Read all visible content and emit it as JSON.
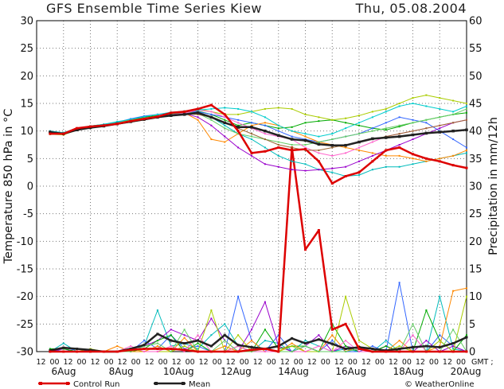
{
  "title": "GFS Ensemble Time Series Kiew",
  "date": "Thu, 05.08.2004",
  "credit": "© WeatherOnline",
  "chart_data": {
    "type": "line",
    "ylabel_left": "Temperature 850 hPa in °C",
    "ylabel_right": "Precipitation in mm/12h",
    "ylim_left": [
      -30,
      30
    ],
    "ylim_right": [
      0,
      60
    ],
    "left_ticks": [
      30,
      25,
      20,
      15,
      10,
      5,
      0,
      -5,
      -10,
      -15,
      -20,
      -25,
      -30
    ],
    "right_ticks": [
      60,
      55,
      50,
      45,
      40,
      35,
      30,
      25,
      20,
      15,
      10,
      5,
      0
    ],
    "hour_ticks": [
      "12",
      "00",
      "12",
      "00",
      "12",
      "00",
      "12",
      "00",
      "12",
      "00",
      "12",
      "00",
      "12",
      "00",
      "12",
      "00",
      "12",
      "00",
      "12",
      "00",
      "12",
      "00",
      "12",
      "00",
      "12",
      "00",
      "12",
      "00",
      "12",
      "00",
      "12",
      "00"
    ],
    "gmt_label": "GMT ;",
    "date_labels": [
      "6Aug",
      "8Aug",
      "10Aug",
      "12Aug",
      "14Aug",
      "16Aug",
      "18Aug",
      "20Aug"
    ],
    "grid": true,
    "legend": [
      {
        "name": "Control Run",
        "color": "#dd0000"
      },
      {
        "name": "Mean",
        "color": "#222222"
      }
    ],
    "temperature": {
      "control": [
        9.5,
        9.5,
        10.5,
        10.8,
        11,
        11.3,
        11.8,
        12.2,
        12.6,
        13.3,
        13.5,
        14,
        14.7,
        13,
        10,
        6,
        6.3,
        7,
        6.5,
        6.7,
        4.5,
        0.5,
        1.8,
        2.5,
        4.5,
        6.5,
        7,
        5.8,
        5,
        4.5,
        3.8,
        3.3
      ],
      "mean": [
        9.8,
        9.5,
        10.2,
        10.6,
        10.9,
        11.3,
        11.7,
        12.1,
        12.5,
        12.8,
        13,
        13.3,
        12.5,
        11.5,
        10.7,
        10.7,
        10,
        9.2,
        8.5,
        8.3,
        7.6,
        7.4,
        7.4,
        8,
        8.6,
        8.8,
        9,
        9.3,
        9.6,
        9.8,
        10,
        10.2
      ],
      "members": [
        {
          "color": "#00bbbb",
          "values": [
            10,
            9.7,
            10.3,
            10.8,
            11,
            11.2,
            11.8,
            12.2,
            12.8,
            13,
            13.2,
            13.5,
            12.5,
            11,
            9.5,
            8.5,
            7,
            5.5,
            4.5,
            4,
            3,
            2.5,
            1.8,
            2,
            3,
            3.5,
            3.5,
            4,
            4.5,
            5,
            5.5,
            6
          ]
        },
        {
          "color": "#00aa00",
          "values": [
            9.6,
            9.4,
            10.4,
            10.9,
            11.2,
            11.6,
            12,
            12.5,
            12.8,
            13,
            13.3,
            13.6,
            13,
            12,
            11,
            11.5,
            11,
            10.5,
            10.7,
            11.5,
            11.8,
            12,
            11.5,
            11,
            10.5,
            10.2,
            10.8,
            11.5,
            12,
            12.5,
            13,
            13.3
          ]
        },
        {
          "color": "#aacc00",
          "values": [
            9.4,
            9.3,
            10.2,
            10.7,
            11.1,
            11.5,
            12,
            12.3,
            12.7,
            13.2,
            13.6,
            14,
            13.5,
            13,
            13,
            13.5,
            14,
            14.2,
            14,
            13,
            12.5,
            12,
            12.3,
            12.8,
            13.5,
            14,
            15,
            16,
            16.5,
            16,
            15.5,
            15
          ]
        },
        {
          "color": "#3366ff",
          "values": [
            9.9,
            9.6,
            10.3,
            10.8,
            11.2,
            11.6,
            12.2,
            12.7,
            13,
            13.3,
            13.5,
            13.5,
            13,
            12.5,
            12,
            11.5,
            11,
            10,
            9,
            8.5,
            8,
            8.5,
            9,
            9.5,
            10.5,
            11.5,
            12.5,
            12,
            11.5,
            10,
            8.5,
            7
          ]
        },
        {
          "color": "#ff8800",
          "values": [
            9.7,
            9.4,
            10.1,
            10.6,
            10.9,
            11.2,
            11.6,
            12,
            12.4,
            12.9,
            13.3,
            12,
            8.5,
            8,
            9.5,
            11,
            11.5,
            11,
            10,
            9,
            8,
            7.5,
            7,
            6.5,
            6,
            5.5,
            5.5,
            5,
            4.5,
            5,
            5.5,
            6.5
          ]
        },
        {
          "color": "#9900cc",
          "values": [
            9.5,
            9.5,
            10.2,
            10.7,
            11,
            11.4,
            11.8,
            12.2,
            12.6,
            13,
            13.2,
            12.5,
            11,
            9,
            7,
            5.5,
            4,
            3.5,
            3,
            2.8,
            3,
            3.2,
            3.5,
            4.5,
            5.5,
            6.5,
            7.5,
            8.5,
            9.5,
            10.5,
            11.5,
            12
          ]
        },
        {
          "color": "#66cc66",
          "values": [
            9.8,
            9.6,
            10.4,
            10.8,
            11.1,
            11.5,
            11.9,
            12.3,
            12.7,
            13.1,
            13.4,
            13.2,
            12,
            10.5,
            9.5,
            9,
            8.5,
            8,
            7.5,
            7.5,
            8,
            8.5,
            9,
            9.5,
            10,
            10.5,
            11,
            11.5,
            12,
            12.5,
            13,
            14
          ]
        },
        {
          "color": "#ff66cc",
          "values": [
            9.6,
            9.5,
            10.2,
            10.6,
            10.9,
            11.4,
            11.8,
            12.1,
            12.5,
            12.9,
            13.2,
            13.8,
            13.5,
            12.5,
            11.5,
            10.5,
            9.5,
            9,
            8.5,
            7,
            6,
            5.5,
            6,
            7,
            8,
            9,
            9.5,
            10,
            10.5,
            11,
            11.5,
            12
          ]
        },
        {
          "color": "#00cccc",
          "values": [
            9.9,
            9.7,
            10.5,
            10.9,
            11.2,
            11.7,
            12.1,
            12.6,
            13,
            13.4,
            13.6,
            13.8,
            14,
            14.2,
            14,
            13.5,
            12.5,
            11,
            10,
            9.5,
            9,
            9.5,
            10.5,
            11.5,
            12.5,
            13.5,
            14.5,
            15,
            14.5,
            14,
            13.5,
            14.5
          ]
        },
        {
          "color": "#996633",
          "values": [
            9.5,
            9.4,
            10.3,
            10.7,
            11,
            11.3,
            11.7,
            12.1,
            12.5,
            12.9,
            13.1,
            13,
            12.5,
            11.5,
            10.5,
            9.5,
            8.5,
            7.5,
            7,
            6.5,
            6.5,
            7,
            7.5,
            8,
            8.5,
            9,
            9.5,
            10,
            10.5,
            11,
            11.5,
            12
          ]
        }
      ]
    },
    "precipitation": {
      "control": [
        0,
        0,
        0,
        0,
        0,
        0,
        0.3,
        0.5,
        0.5,
        0.5,
        0.3,
        0,
        0,
        0,
        0,
        0.3,
        0.5,
        0,
        37,
        18.5,
        22,
        4,
        5,
        0.5,
        0,
        0,
        0,
        0,
        0,
        0,
        0,
        0
      ],
      "mean": [
        0.2,
        0.7,
        0.5,
        0.3,
        0,
        0,
        0.5,
        1.2,
        3.2,
        2,
        1.5,
        2,
        1,
        3,
        1.2,
        0.8,
        0.5,
        1,
        2.4,
        1.5,
        2.2,
        1.4,
        0.5,
        0.8,
        0.5,
        0.2,
        0.5,
        0.8,
        1,
        0.8,
        1.5,
        2.6
      ],
      "members": [
        {
          "color": "#00bbbb",
          "values": [
            0,
            1.5,
            0,
            0,
            0,
            0,
            0,
            1,
            7.5,
            1,
            1.5,
            0.5,
            3,
            5,
            1,
            0,
            2,
            1.5,
            0,
            2,
            1,
            0,
            0.5,
            0,
            0,
            2,
            0,
            0,
            0,
            10,
            0.5,
            0
          ]
        },
        {
          "color": "#3366ff",
          "values": [
            0.5,
            0,
            0.5,
            0,
            0,
            0,
            0,
            2,
            0.5,
            3,
            0.5,
            1,
            0,
            0,
            10,
            2,
            0,
            3,
            0,
            1,
            0,
            2,
            0,
            0,
            1,
            0,
            12.5,
            0,
            0,
            3,
            1,
            0
          ]
        },
        {
          "color": "#9900cc",
          "values": [
            0,
            0.5,
            0,
            0,
            0,
            0,
            0.5,
            1,
            2,
            4,
            3,
            2,
            6,
            2,
            0,
            4,
            9,
            1,
            0,
            1,
            3,
            0,
            1,
            0.5,
            0,
            1,
            0,
            0,
            2,
            0,
            1,
            0
          ]
        },
        {
          "color": "#00aa00",
          "values": [
            0.5,
            0.5,
            0,
            0,
            0,
            0,
            0,
            0.5,
            2,
            3,
            0,
            1.5,
            0,
            0,
            1,
            0,
            4,
            0.5,
            1,
            1,
            0,
            5,
            1,
            0,
            0,
            1,
            0,
            0,
            7.5,
            2,
            0,
            3
          ]
        },
        {
          "color": "#ff8800",
          "values": [
            0,
            0,
            0,
            0,
            0,
            1,
            0,
            0,
            1,
            0,
            2.5,
            0,
            0,
            1,
            0,
            2,
            0,
            0,
            1.5,
            0,
            0,
            3,
            0,
            1,
            0,
            0,
            2,
            0,
            0,
            1,
            11,
            11.5
          ]
        },
        {
          "color": "#aacc00",
          "values": [
            0,
            0,
            0,
            0.5,
            0,
            0,
            0.5,
            0,
            0,
            0,
            1,
            0,
            7.5,
            0,
            3,
            0,
            0,
            0,
            1,
            0,
            0,
            0,
            10,
            2,
            0.5,
            0,
            1,
            0,
            0,
            2,
            0,
            10
          ]
        },
        {
          "color": "#ff66cc",
          "values": [
            0,
            0,
            0,
            0,
            0,
            0,
            1,
            0,
            0,
            1,
            0,
            3,
            0,
            0,
            1,
            0,
            0,
            0,
            0,
            0,
            1,
            0,
            2,
            0,
            0,
            0,
            0,
            3,
            0,
            0,
            0,
            0
          ]
        },
        {
          "color": "#66cc66",
          "values": [
            0,
            0,
            0,
            0,
            0,
            0,
            0,
            1,
            1.5,
            0,
            4,
            0,
            0,
            2,
            0,
            0,
            0.5,
            0,
            0,
            1,
            0,
            0,
            0,
            0.5,
            0,
            0,
            0,
            5,
            0,
            0,
            4,
            0
          ]
        }
      ]
    }
  }
}
